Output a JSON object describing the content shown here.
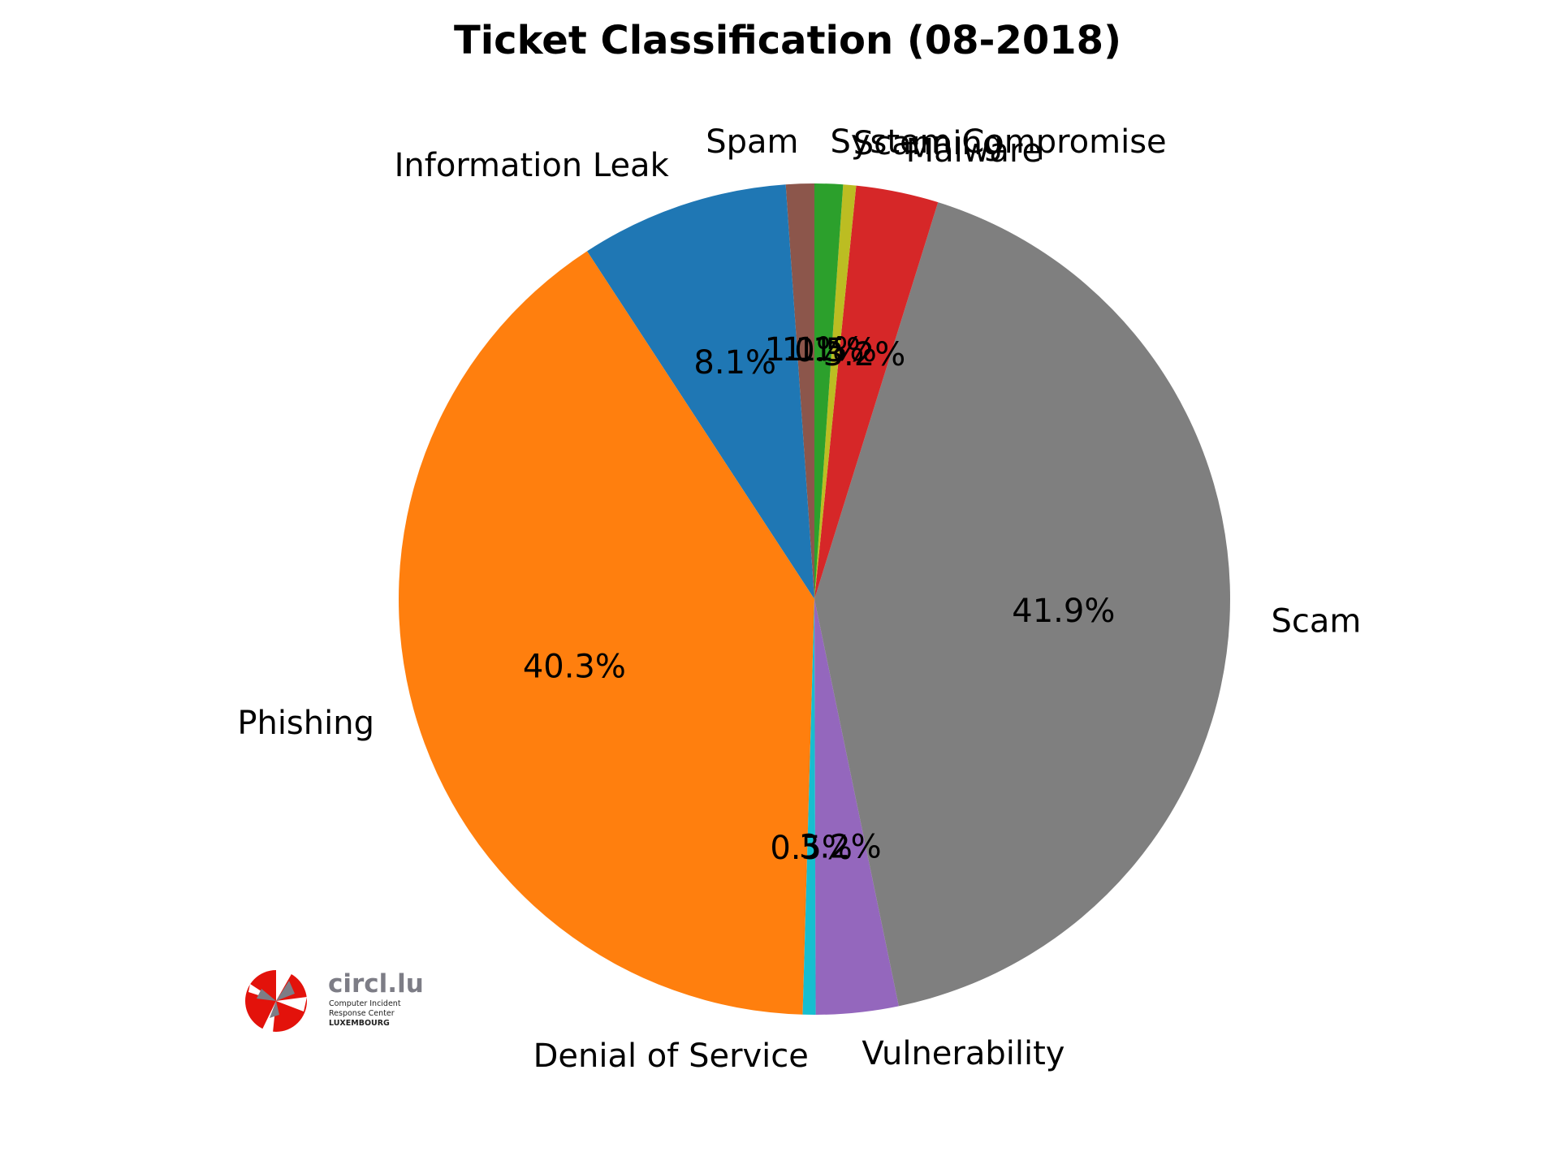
{
  "chart_data": {
    "type": "pie",
    "title": "Ticket Classification (08-2018)",
    "start_angle_deg": 90,
    "direction": "counterclockwise",
    "slices": [
      {
        "label": "Spam",
        "value": 1.1,
        "pct_text": "1.1%",
        "color": "#8c564b"
      },
      {
        "label": "Information Leak",
        "value": 8.1,
        "pct_text": "8.1%",
        "color": "#1f77b4"
      },
      {
        "label": "Phishing",
        "value": 40.3,
        "pct_text": "40.3%",
        "color": "#ff7f0e"
      },
      {
        "label": "Denial of Service",
        "value": 0.5,
        "pct_text": "0.5%",
        "color": "#17becf"
      },
      {
        "label": "Vulnerability",
        "value": 3.2,
        "pct_text": "3.2%",
        "color": "#9467bd"
      },
      {
        "label": "Scam",
        "value": 41.9,
        "pct_text": "41.9%",
        "color": "#7f7f7f"
      },
      {
        "label": "Malware",
        "value": 3.2,
        "pct_text": "3.2%",
        "color": "#d62728"
      },
      {
        "label": "Scanning",
        "value": 0.5,
        "pct_text": "0.5%",
        "color": "#bcbd22"
      },
      {
        "label": "System Compromise",
        "value": 1.1,
        "pct_text": "1.1%",
        "color": "#2ca02c"
      }
    ]
  },
  "logo": {
    "name": "circl.lu",
    "line1": "Computer Incident",
    "line2": "Response Center",
    "line3": "LUXEMBOURG",
    "color_red": "#e3120b",
    "color_grey": "#7d7d86"
  }
}
